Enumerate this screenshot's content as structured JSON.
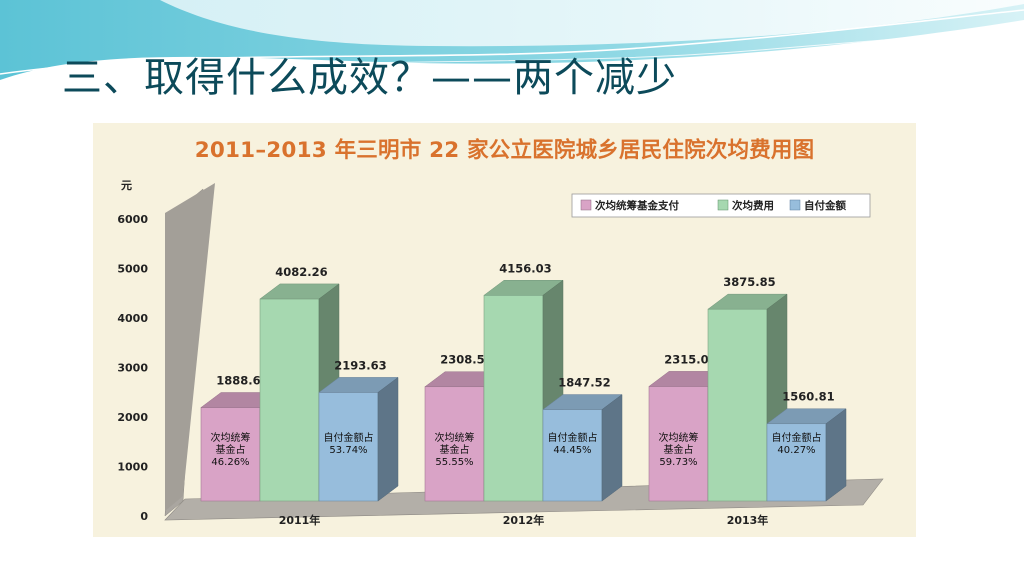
{
  "slide": {
    "title": "三、取得什么成效？——两个减少"
  },
  "chart_data": {
    "type": "bar",
    "title": "2011–2013 年三明市 22 家公立医院城乡居民住院次均费用图",
    "ylabel": "元",
    "ylim": [
      0,
      6000
    ],
    "yticks": [
      "0",
      "1000",
      "2000",
      "3000",
      "4000",
      "5000",
      "6000"
    ],
    "categories": [
      "2011年",
      "2012年",
      "2013年"
    ],
    "legend_position": "top-right",
    "grid": false,
    "series": [
      {
        "name": "次均统筹基金支付",
        "color": "#d9a3c6",
        "values": [
          1888.63,
          2308.51,
          2315.04
        ],
        "value_labels": [
          "1888.63",
          "2308.51",
          "2315.04"
        ]
      },
      {
        "name": "次均费用",
        "color": "#a6d8b0",
        "values": [
          4082.26,
          4156.03,
          3875.85
        ],
        "value_labels": [
          "4082.26",
          "4156.03",
          "3875.85"
        ]
      },
      {
        "name": "自付金额",
        "color": "#97bddc",
        "values": [
          2193.63,
          1847.52,
          1560.81
        ],
        "value_labels": [
          "2193.63",
          "1847.52",
          "1560.81"
        ]
      }
    ],
    "inner_labels": [
      {
        "series": 0,
        "lines": [
          [
            "次均统筹",
            "基金占",
            "46.26%"
          ],
          [
            "次均统筹",
            "基金占",
            "55.55%"
          ],
          [
            "次均统筹",
            "基金占",
            "59.73%"
          ]
        ]
      },
      {
        "series": 2,
        "lines": [
          [
            "自付金额占",
            "53.74%"
          ],
          [
            "自付金额占",
            "44.45%"
          ],
          [
            "自付金额占",
            "40.27%"
          ]
        ]
      }
    ]
  }
}
